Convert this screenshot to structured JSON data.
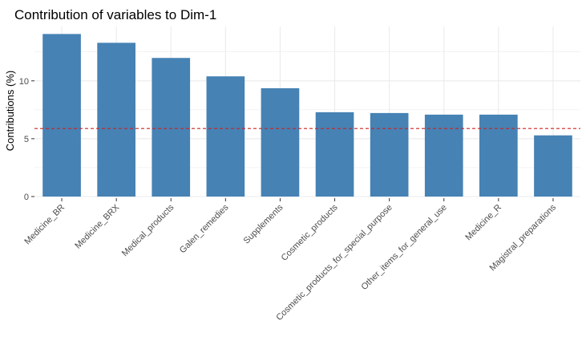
{
  "chart_data": {
    "type": "bar",
    "title": "Contribution of variables to Dim-1",
    "xlabel": "",
    "ylabel": "Contributions (%)",
    "categories": [
      "Medicine_BR",
      "Medicine_BRX",
      "Medical_products",
      "Galen_remedies",
      "Supplements",
      "Cosmetic_products",
      "Cosmetic_products_for_special_purpose",
      "Other_items_for_general_use",
      "Medicine_R",
      "Magistral_preparations"
    ],
    "values": [
      14.05,
      13.29,
      11.98,
      10.39,
      9.36,
      7.29,
      7.22,
      7.08,
      7.08,
      5.29
    ],
    "reference_line": 5.88,
    "yticks": [
      0,
      5,
      10
    ],
    "ylim": [
      0,
      14.7
    ],
    "grid": true,
    "colors": {
      "bar": "#4682B4",
      "reference": "#CC2222",
      "grid": "#EBEBEB"
    }
  }
}
